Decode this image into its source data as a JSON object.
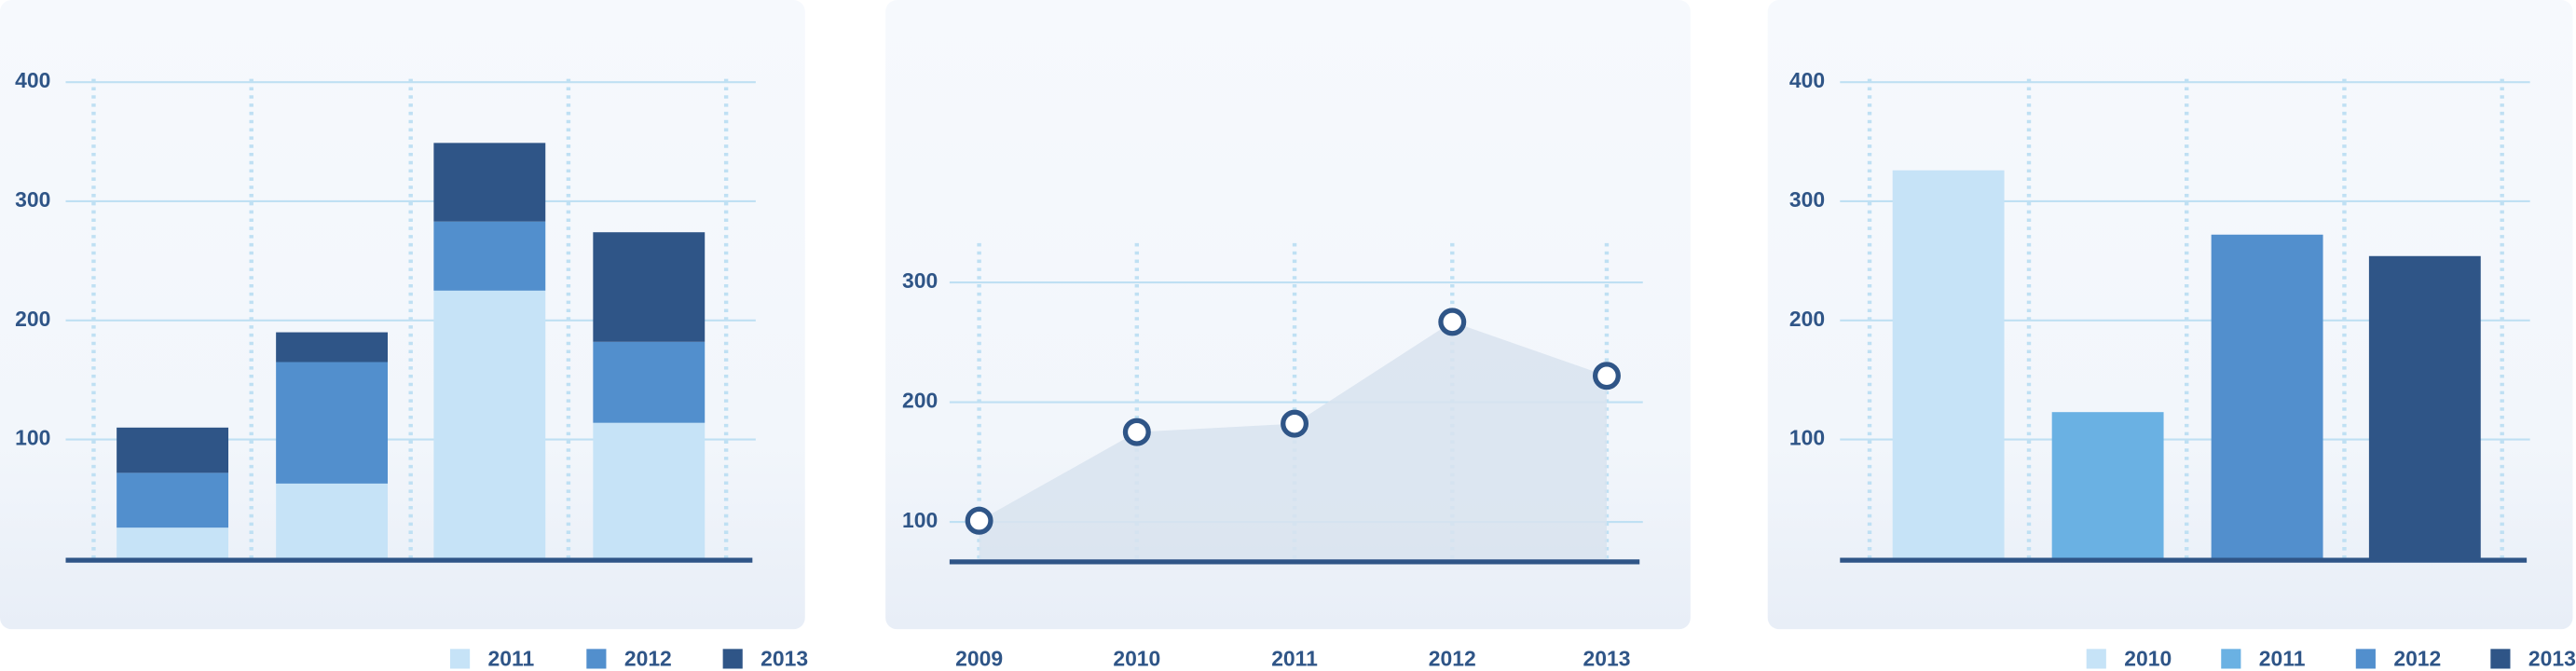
{
  "chart_data": [
    {
      "type": "stacked_bar",
      "categories": [
        null,
        null,
        null,
        null
      ],
      "series": [
        {
          "name": "2011",
          "color": "#c6e3f7",
          "values": [
            26,
            63,
            225,
            114
          ]
        },
        {
          "name": "2012",
          "color": "#528fcd",
          "values": [
            46,
            102,
            58,
            68
          ]
        },
        {
          "name": "2013",
          "color": "#2f5587",
          "values": [
            38,
            25,
            66,
            92
          ]
        }
      ],
      "ylim": [
        0,
        400
      ],
      "yticks": [
        100,
        200,
        300,
        400
      ],
      "grid": true,
      "legend": "bottom-right"
    },
    {
      "type": "area",
      "categories": [
        "2009",
        "2010",
        "2011",
        "2012",
        "2013"
      ],
      "values": [
        101,
        175,
        182,
        267,
        222
      ],
      "color": "#2f5587",
      "fill": "#d8e3ef",
      "ylim": [
        68,
        330
      ],
      "yticks": [
        100,
        200,
        300
      ],
      "grid": true
    },
    {
      "type": "bar",
      "categories": [
        null
      ],
      "series": [
        {
          "name": "2010",
          "color": "#c6e3f7",
          "values": [
            326
          ]
        },
        {
          "name": "2011",
          "color": "#6ab1e3",
          "values": [
            123
          ]
        },
        {
          "name": "2012",
          "color": "#528fcd",
          "values": [
            272
          ]
        },
        {
          "name": "2013",
          "color": "#2f5587",
          "values": [
            254
          ]
        }
      ],
      "ylim": [
        0,
        400
      ],
      "yticks": [
        100,
        200,
        300,
        400
      ],
      "grid": true,
      "legend": "bottom-right"
    }
  ]
}
